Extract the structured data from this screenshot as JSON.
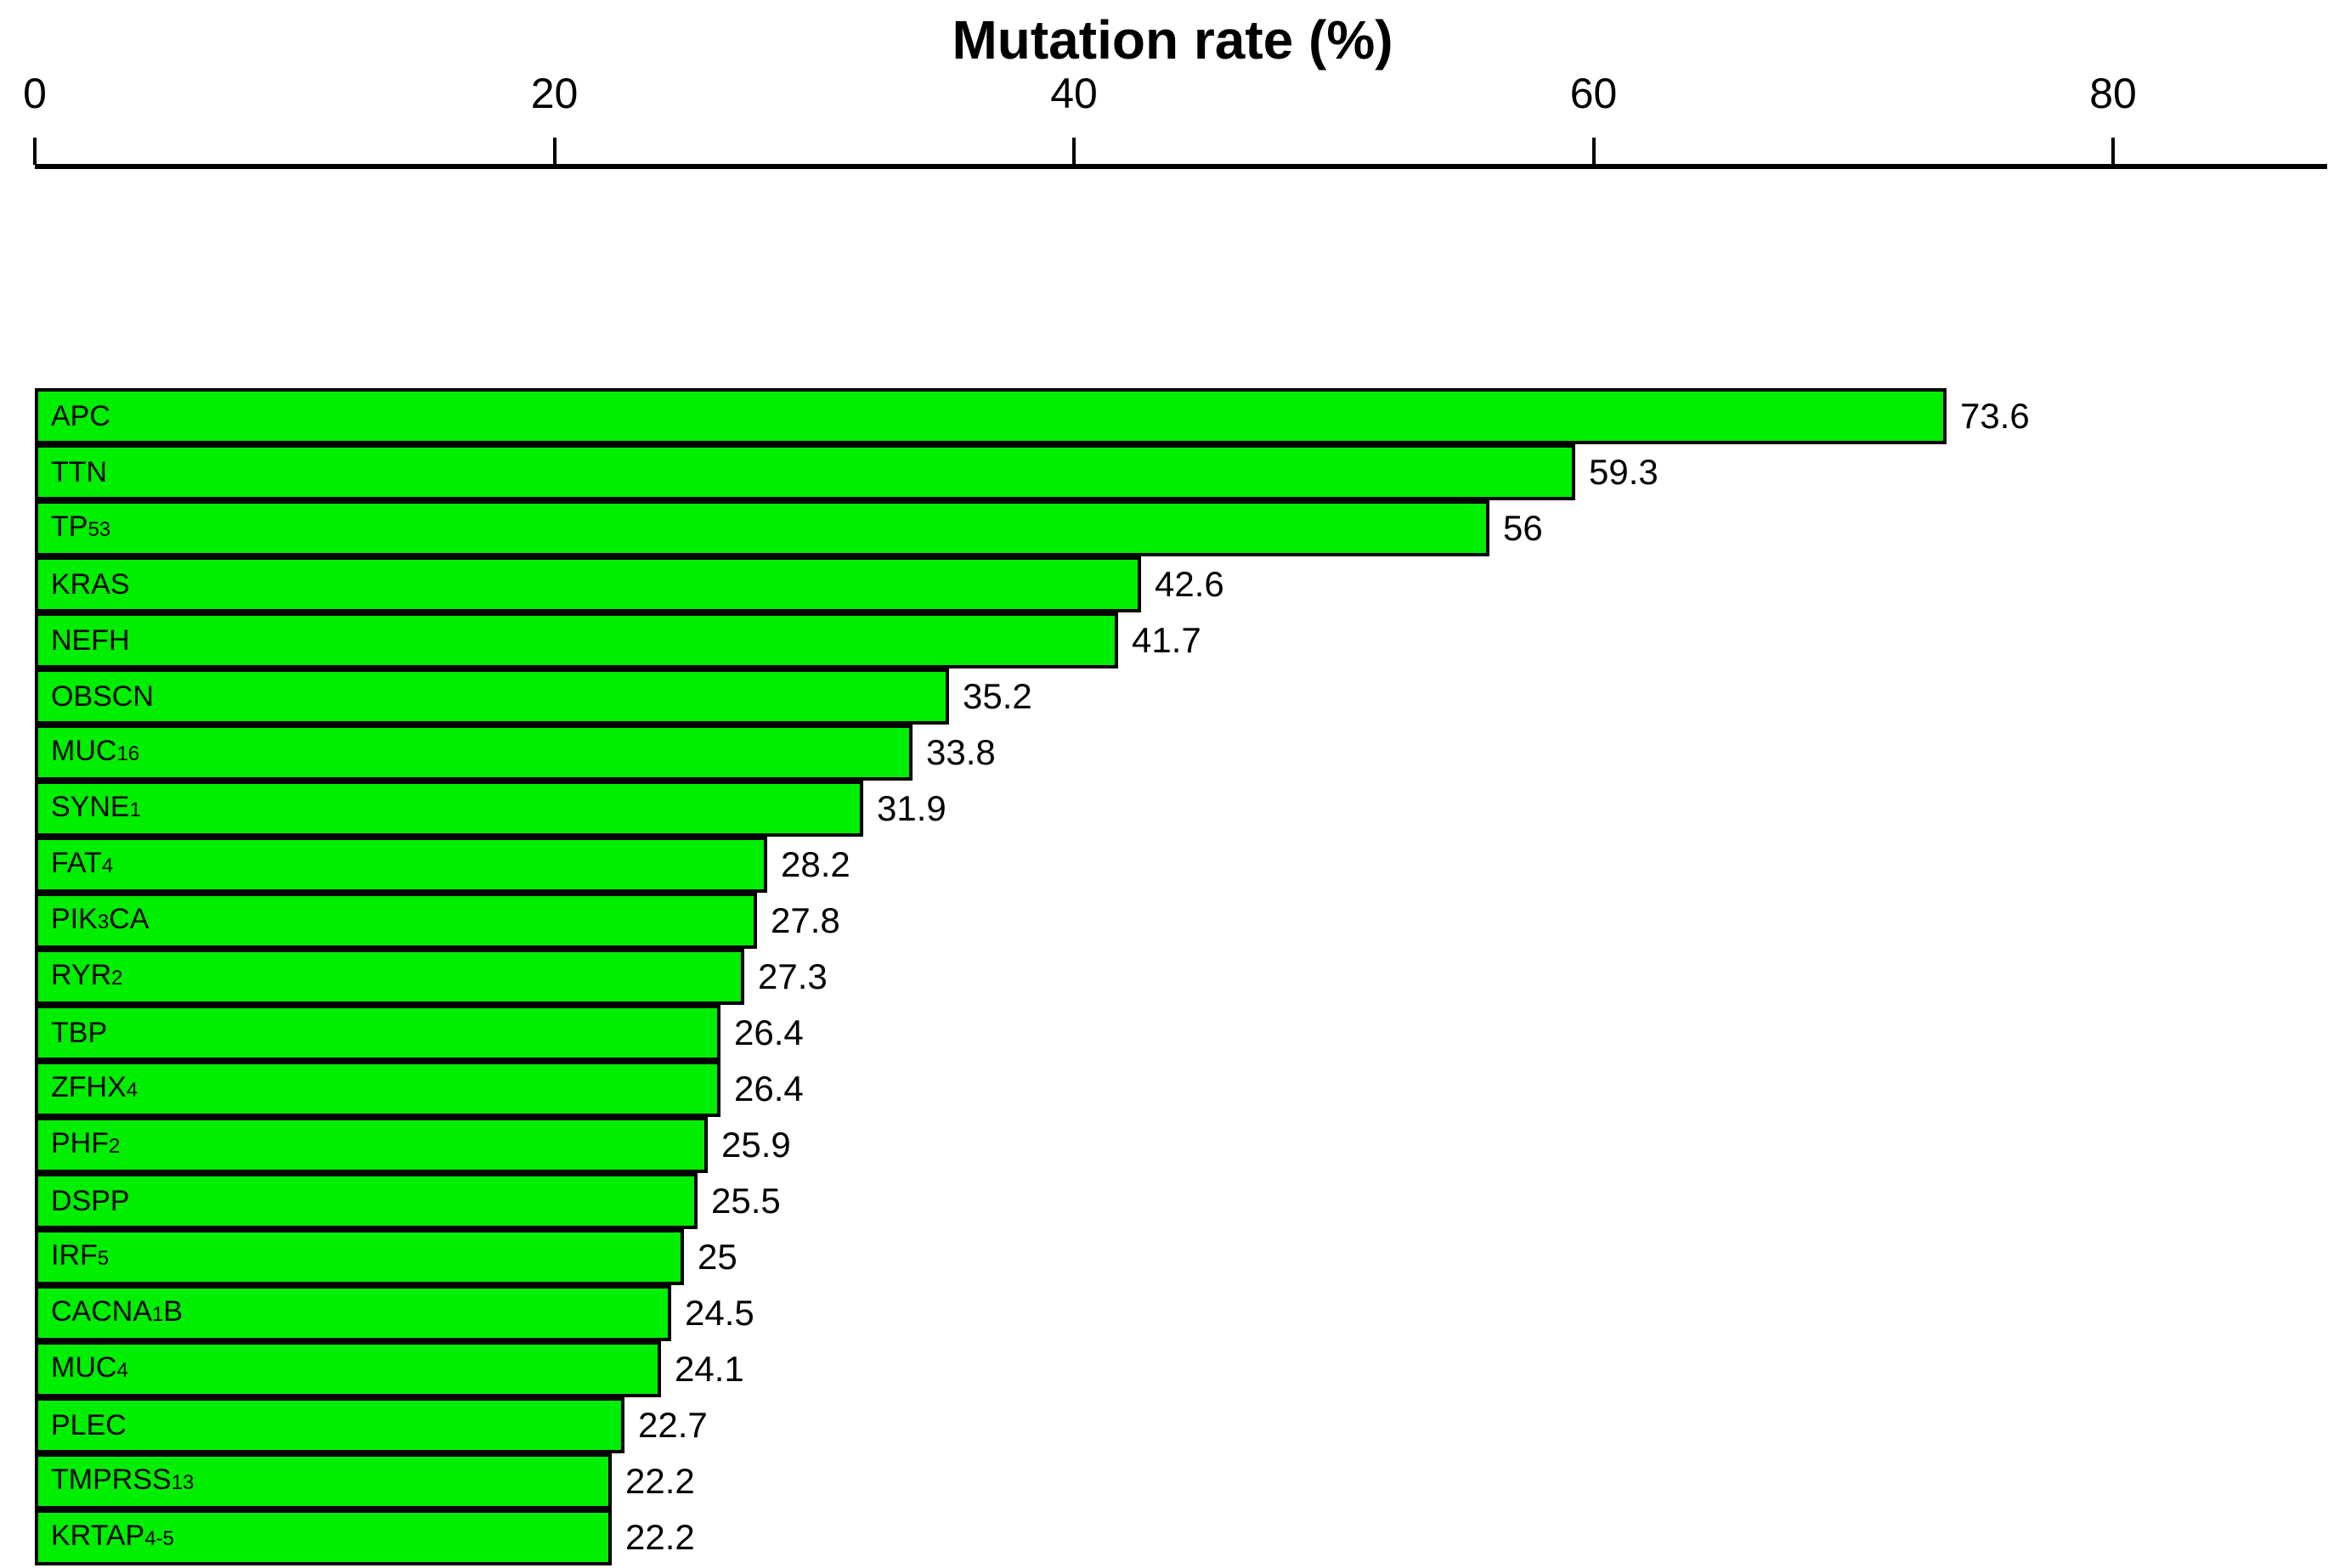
{
  "chart_data": {
    "type": "bar",
    "orientation": "horizontal",
    "title": "Mutation rate (%)",
    "xlabel": "Mutation rate (%)",
    "ylabel": "",
    "categories": [
      "APC",
      "TTN",
      "TP53",
      "KRAS",
      "NEFH",
      "OBSCN",
      "MUC16",
      "SYNE1",
      "FAT4",
      "PIK3CA",
      "RYR2",
      "TBP",
      "ZFHX4",
      "PHF2",
      "DSPP",
      "IRF5",
      "CACNA1B",
      "MUC4",
      "PLEC",
      "TMPRSS13",
      "KRTAP4-5"
    ],
    "values": [
      73.6,
      59.3,
      56,
      42.6,
      41.7,
      35.2,
      33.8,
      31.9,
      28.2,
      27.8,
      27.3,
      26.4,
      26.4,
      25.9,
      25.5,
      25,
      24.5,
      24.1,
      22.7,
      22.2,
      22.2
    ],
    "value_labels": [
      "73.6",
      "59.3",
      "56",
      "42.6",
      "41.7",
      "35.2",
      "33.8",
      "31.9",
      "28.2",
      "27.8",
      "27.3",
      "26.4",
      "26.4",
      "25.9",
      "25.5",
      "25",
      "24.5",
      "24.1",
      "22.7",
      "22.2",
      "22.2"
    ],
    "x_ticks": [
      0,
      20,
      40,
      60,
      80
    ],
    "xlim": [
      0,
      88.3
    ],
    "axis_position": "top",
    "grid": false,
    "legend": "none",
    "bar_fill_color": "#00EE00",
    "bar_border_color": "#000000",
    "axis_color": "#000000",
    "text_color": "#000000",
    "background_color": "#FFFFFF"
  }
}
